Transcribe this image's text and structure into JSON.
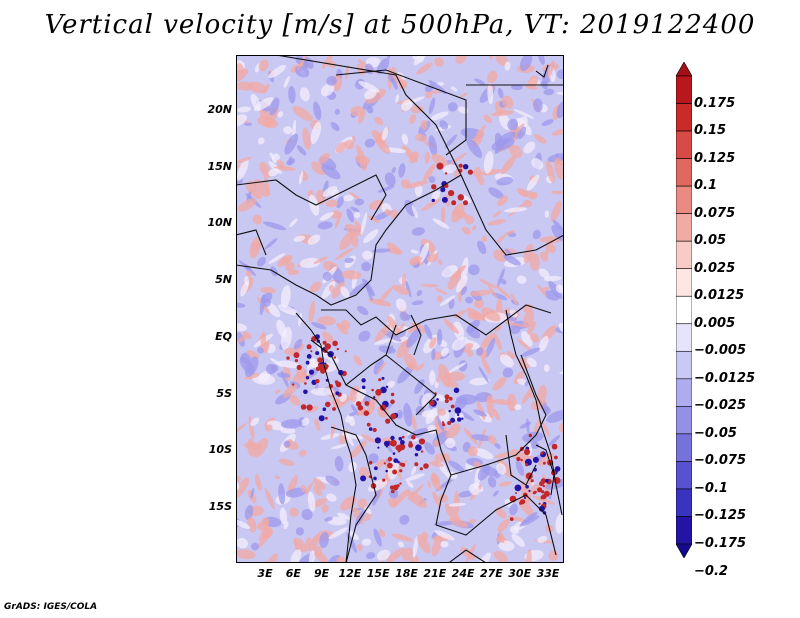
{
  "title": "Vertical velocity [m/s] at 500hPa, VT: 2019122400",
  "footer": "GrADS: IGES/COLA",
  "lat_labels": [
    "20N",
    "15N",
    "10N",
    "5N",
    "EQ",
    "5S",
    "10S",
    "15S"
  ],
  "lon_labels": [
    "3E",
    "6E",
    "9E",
    "12E",
    "15E",
    "18E",
    "21E",
    "24E",
    "27E",
    "30E",
    "33E"
  ],
  "colorbar": {
    "labels": [
      "0.175",
      "0.15",
      "0.125",
      "0.1",
      "0.075",
      "0.05",
      "0.025",
      "0.0125",
      "0.005",
      "−0.005",
      "−0.0125",
      "−0.025",
      "−0.05",
      "−0.075",
      "−0.1",
      "−0.125",
      "−0.175",
      "−0.2"
    ],
    "colors": [
      "#a50f15",
      "#b9171d",
      "#cb2a2a",
      "#d84a45",
      "#e1675f",
      "#ea8a82",
      "#f2aaa4",
      "#f8cbc7",
      "#fde6e4",
      "#ffffff",
      "#e5e4fa",
      "#cac8f4",
      "#aeabee",
      "#9390e6",
      "#7672dc",
      "#5752d0",
      "#3a33c0",
      "#2314a6",
      "#170a8a"
    ]
  },
  "map_colors": {
    "background": "#c9c8f3",
    "blue_patch": "#9c99ec",
    "light_patch": "#f3eefc",
    "red_patch": "#f1aaa4",
    "dark_red": "#c0282b",
    "border": "#111111"
  }
}
